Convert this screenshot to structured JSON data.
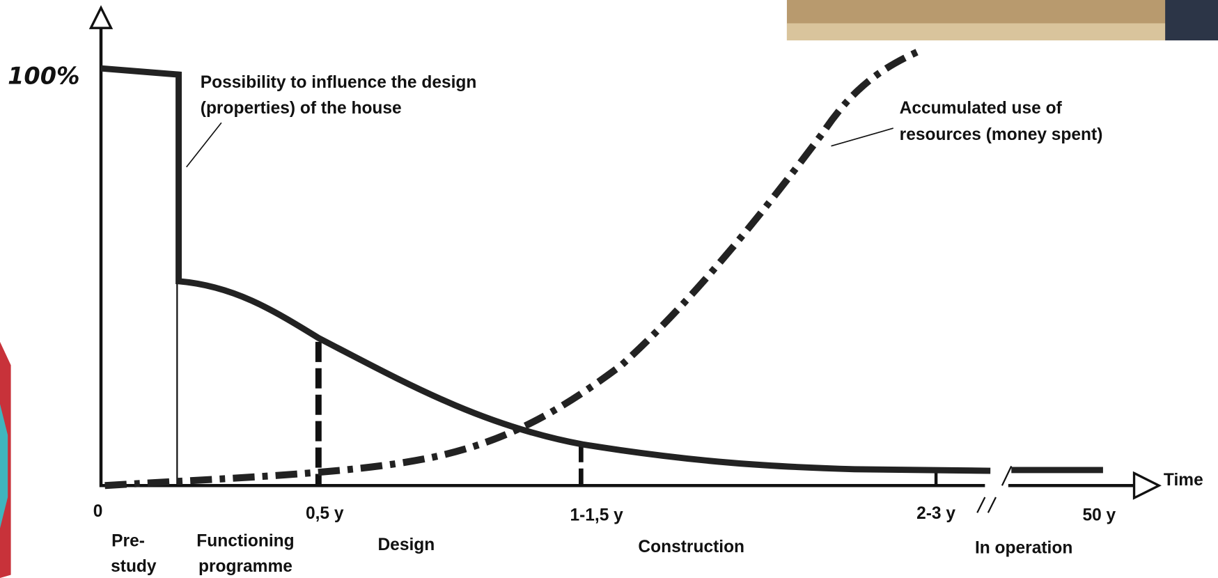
{
  "y_axis": {
    "label": "100%"
  },
  "x_axis": {
    "label": "Time",
    "ticks": [
      "0",
      "0,5 y",
      "1-1,5 y",
      "2-3 y",
      "50 y"
    ]
  },
  "phases": [
    {
      "lines": [
        "Pre-",
        "study"
      ]
    },
    {
      "lines": [
        "Functioning",
        "programme"
      ]
    },
    {
      "lines": [
        "Design"
      ]
    },
    {
      "lines": [
        "Construction"
      ]
    },
    {
      "lines": [
        "In operation"
      ]
    }
  ],
  "annotations": {
    "influence": [
      "Possibility to influence the design",
      "(properties) of the house"
    ],
    "resources": [
      "Accumulated use of",
      "resources (money spent)"
    ]
  }
}
